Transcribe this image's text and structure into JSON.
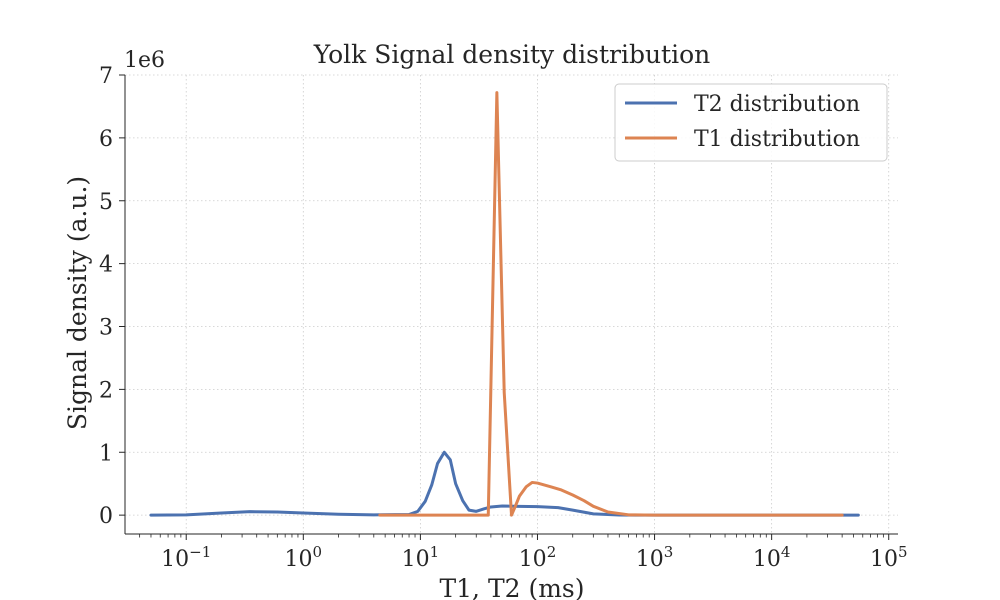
{
  "chart_data": {
    "type": "line",
    "title": "Yolk Signal density distribution",
    "xlabel": "T1, T2 (ms)",
    "ylabel": "Signal density (a.u.)",
    "y_offset_label": "1e6",
    "x_scale": "log",
    "xlim": [
      0.03,
      120000
    ],
    "ylim": [
      -300000,
      7000000
    ],
    "grid": true,
    "legend_placement": "top-right",
    "x_ticks": [
      {
        "value": 0.1,
        "base": "10",
        "exp": "−1"
      },
      {
        "value": 1,
        "base": "10",
        "exp": "0"
      },
      {
        "value": 10,
        "base": "10",
        "exp": "1"
      },
      {
        "value": 100,
        "base": "10",
        "exp": "2"
      },
      {
        "value": 1000,
        "base": "10",
        "exp": "3"
      },
      {
        "value": 10000,
        "base": "10",
        "exp": "4"
      },
      {
        "value": 100000,
        "base": "10",
        "exp": "5"
      }
    ],
    "y_ticks": [
      {
        "value": 0,
        "label": "0"
      },
      {
        "value": 1000000,
        "label": "1"
      },
      {
        "value": 2000000,
        "label": "2"
      },
      {
        "value": 3000000,
        "label": "3"
      },
      {
        "value": 4000000,
        "label": "4"
      },
      {
        "value": 5000000,
        "label": "5"
      },
      {
        "value": 6000000,
        "label": "6"
      },
      {
        "value": 7000000,
        "label": "7"
      }
    ],
    "series": [
      {
        "name": "T2 distribution",
        "color": "#4c72b0",
        "x": [
          0.05,
          0.1,
          0.2,
          0.35,
          0.6,
          1,
          2,
          4,
          8,
          9.5,
          11,
          12.5,
          14,
          16,
          18,
          20,
          23,
          26,
          30,
          35,
          40,
          50,
          70,
          100,
          150,
          200,
          300,
          500,
          1000,
          10000,
          55000
        ],
        "y": [
          0,
          5000,
          35000,
          55000,
          50000,
          35000,
          15000,
          5000,
          10000,
          60000,
          220000,
          480000,
          820000,
          1000000,
          880000,
          500000,
          230000,
          80000,
          60000,
          100000,
          130000,
          145000,
          140000,
          135000,
          120000,
          80000,
          20000,
          2000,
          0,
          0,
          0
        ]
      },
      {
        "name": "T1 distribution",
        "color": "#dd8452",
        "x": [
          4.5,
          10,
          20,
          30,
          38,
          45,
          52,
          60,
          65,
          70,
          80,
          90,
          100,
          130,
          160,
          200,
          250,
          300,
          400,
          600,
          1000,
          10000,
          40000
        ],
        "y": [
          0,
          0,
          0,
          0,
          0,
          6720000,
          1950000,
          0,
          150000,
          300000,
          450000,
          520000,
          510000,
          450000,
          400000,
          320000,
          230000,
          140000,
          50000,
          5000,
          0,
          0,
          0
        ]
      }
    ]
  }
}
